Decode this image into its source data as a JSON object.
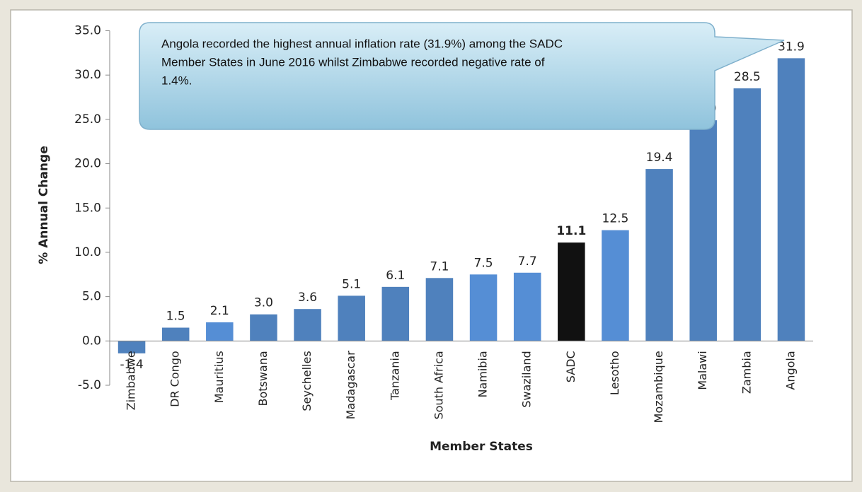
{
  "chart_data": {
    "type": "bar",
    "annotation": [
      "Angola recorded the highest annual inflation rate (31.9%) among the SADC",
      "Member States in June 2016 whilst Zimbabwe recorded negative rate of",
      "1.4%."
    ],
    "x_label": "Member States",
    "y_label": "% Annual Change",
    "categories": [
      "Zimbabwe",
      "DR Congo",
      "Mauritius",
      "Botswana",
      "Seychelles",
      "Madagascar",
      "Tanzania",
      "South Africa",
      "Namibia",
      "Swaziland",
      "SADC",
      "Lesotho",
      "Mozambique",
      "Malawi",
      "Zambia",
      "Angola"
    ],
    "values": [
      -1.4,
      1.5,
      2.1,
      3.0,
      3.6,
      5.1,
      6.1,
      7.1,
      7.5,
      7.7,
      11.1,
      12.5,
      19.4,
      24.9,
      28.5,
      31.9
    ],
    "value_labels": [
      "-1.4",
      "1.5",
      "2.1",
      "3.0",
      "3.6",
      "5.1",
      "6.1",
      "7.1",
      "7.5",
      "7.7",
      "11.1",
      "12.5",
      "19.4",
      "24.9",
      "28.5",
      "31.9"
    ],
    "value_label_bold": [
      false,
      false,
      false,
      false,
      false,
      false,
      false,
      false,
      false,
      false,
      true,
      false,
      false,
      false,
      false,
      false
    ],
    "colors": [
      "#4f81bd",
      "#4f81bd",
      "#558ed5",
      "#4f81bd",
      "#4f81bd",
      "#4f81bd",
      "#4f81bd",
      "#4f81bd",
      "#558ed5",
      "#558ed5",
      "#111111",
      "#558ed5",
      "#4f81bd",
      "#4f81bd",
      "#4f81bd",
      "#4f81bd"
    ],
    "ylim": [
      -5,
      35
    ],
    "yticks": [
      {
        "value": -5,
        "label": "-5.0"
      },
      {
        "value": 0,
        "label": "0.0"
      },
      {
        "value": 5,
        "label": "5.0"
      },
      {
        "value": 10,
        "label": "10.0"
      },
      {
        "value": 15,
        "label": "15.0"
      },
      {
        "value": 20,
        "label": "20.0"
      },
      {
        "value": 25,
        "label": "25.0"
      },
      {
        "value": 30,
        "label": "30.0"
      },
      {
        "value": 35,
        "label": "35.0"
      }
    ],
    "grid": false
  }
}
